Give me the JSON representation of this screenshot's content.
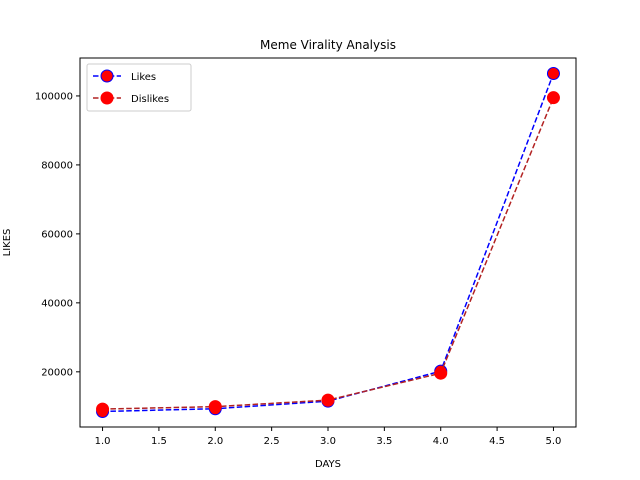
{
  "chart_data": {
    "type": "line",
    "title": "Meme Virality Analysis",
    "xlabel": "DAYS",
    "ylabel": "LIKES",
    "xlim": [
      0.8,
      5.2
    ],
    "ylim": [
      4000,
      111000
    ],
    "xticks": [
      "1.0",
      "1.5",
      "2.0",
      "2.5",
      "3.0",
      "3.5",
      "4.0",
      "4.5",
      "5.0"
    ],
    "xtick_values": [
      1.0,
      1.5,
      2.0,
      2.5,
      3.0,
      3.5,
      4.0,
      4.5,
      5.0
    ],
    "yticks": [
      "20000",
      "40000",
      "60000",
      "80000",
      "100000"
    ],
    "ytick_values": [
      20000,
      40000,
      60000,
      80000,
      100000
    ],
    "grid": false,
    "legend_position": "top-left",
    "x": [
      1,
      2,
      3,
      4,
      5
    ],
    "series": [
      {
        "name": "Likes",
        "values": [
          8500,
          9300,
          11500,
          20200,
          106500
        ],
        "line_color": "#0000ff",
        "marker_face": "#ff0000",
        "marker_edge": "#0000ff",
        "line_style": "dashed"
      },
      {
        "name": "Dislikes",
        "values": [
          9200,
          9900,
          11800,
          19600,
          99500
        ],
        "line_color": "#b22222",
        "marker_face": "#ff0000",
        "marker_edge": "#ff0000",
        "line_style": "dashed"
      }
    ]
  }
}
